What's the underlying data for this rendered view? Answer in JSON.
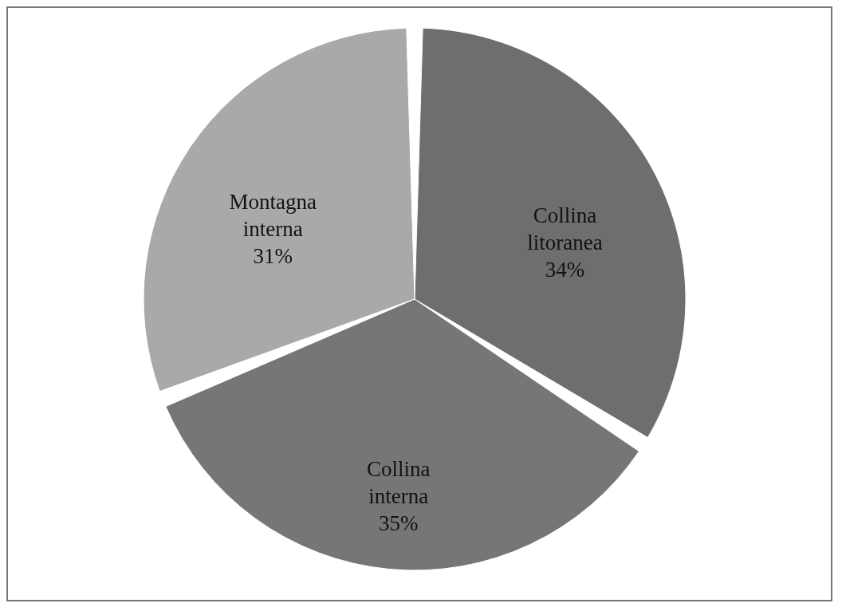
{
  "chart_data": {
    "type": "pie",
    "categories": [
      "Collina litoranea",
      "Collina interna",
      "Montagna interna"
    ],
    "values": [
      34,
      35,
      31
    ],
    "colors": [
      "#6e6e6e",
      "#767676",
      "#a9a9a9"
    ],
    "value_labels": [
      "34%",
      "35%",
      "31%"
    ],
    "legend": false
  }
}
